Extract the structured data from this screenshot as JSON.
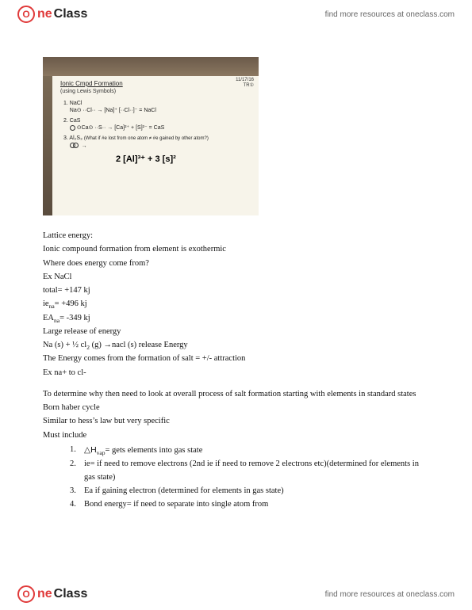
{
  "brand": {
    "circle_text": "O",
    "part1": "ne",
    "part2": "Class",
    "circle_color": "#e03a3a",
    "text_color2": "#222222"
  },
  "header_link": "find more resources at oneclass.com",
  "footer_link": "find more resources at oneclass.com",
  "photo": {
    "title": "Ionic Cmpd Formation",
    "subtitle": "(using Lewis Symbols)",
    "date_line1": "11/17/16",
    "date_line2": "TR①",
    "row1_label": "1.  NaCl",
    "row1_eq": "Na⊙  ··Cl··  →  [Na]⁺  [··Cl··]⁻ = NaCl",
    "row2_label": "2.  CaS",
    "row2_eq": "⊙Ca⊙  ··S··  →  [Ca]²⁺ + [S]²⁻ = CaS",
    "row3_label": "3.  Al₂S₃",
    "row3_note": "(What if #e lost from one atom ≠ #e gained by other atom?)",
    "row3_eq": "2 [Al]³⁺ + 3 [s]²"
  },
  "lines": {
    "l1": "Lattice energy:",
    "l2": "Ionic compound formation from element is exothermic",
    "l3": "Where does energy come from?",
    "l4": "Ex NaCl",
    "l5": "total= +147 kj",
    "l6_pre": "ie",
    "l6_sub": "na",
    "l6_post": "= +496 kj",
    "l7_pre": "EA",
    "l7_sub": "na",
    "l7_post": "= -349 kj",
    "l8": "Large release of energy",
    "l9_a": "Na (s) + ½ cl",
    "l9_sub": "2",
    "l9_b": " (g)  →nacl (s) release Energy",
    "l10": "The Energy comes from the formation of salt = +/- attraction",
    "l11": "Ex na+ to cl-",
    "l12": "To determine why then need to look at overall process of salt formation starting with elements in standard states",
    "l13": "Born haber cycle",
    "l14": "Similar to hess’s law but very specific",
    "l15": "Must include"
  },
  "list": {
    "i1_pre": "△H",
    "i1_sub": "vap",
    "i1_post": "= gets elements into gas state",
    "i2": "ie= if need to remove electrons (2nd ie if need to remove 2 electrons etc)(determined for elements in gas state)",
    "i3": "Ea if gaining electron (determined for elements in gas state)",
    "i4": "Bond energy= if need to separate into single atom from"
  },
  "numbers": {
    "n1": "1.",
    "n2": "2.",
    "n3": "3.",
    "n4": "4."
  },
  "colors": {
    "page_bg": "#ffffff",
    "text": "#111111",
    "link": "#666666",
    "photo_paper": "#f7f4ea",
    "photo_frame": "#6b5a4a"
  },
  "typography": {
    "body_family": "Georgia, Times New Roman, serif",
    "body_size_pt": 10.5,
    "header_family": "Arial, sans-serif",
    "header_link_size_pt": 10
  }
}
